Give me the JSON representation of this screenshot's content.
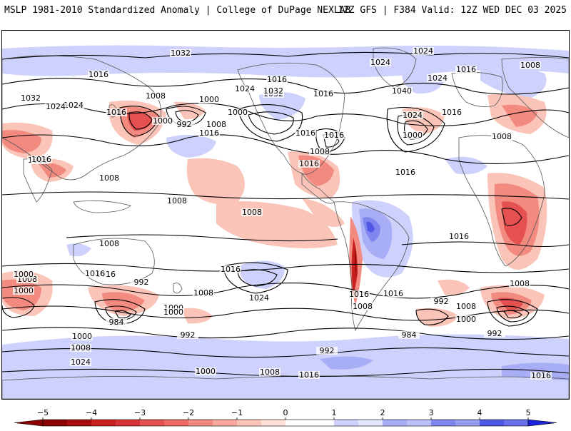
{
  "header": {
    "left_title": "MSLP 1981-2010 Standardized Anomaly | College of DuPage NEXLAB",
    "right_title": "12Z GFS | F384 Valid: 12Z WED DEC 03 2025"
  },
  "colors": {
    "land_outline": "#555555",
    "isobar": "#000000",
    "neg5": "#8b0000",
    "neg4": "#c82020",
    "neg3": "#e55050",
    "neg2": "#f38a80",
    "neg1": "#fbc4b8",
    "pos1": "#cdd1fb",
    "pos2": "#a8aef5",
    "pos3": "#7f86ee",
    "pos4": "#4f58e4",
    "pos5": "#1a23d8"
  },
  "colorbar": {
    "ticks": [
      "−5",
      "−4",
      "−3",
      "−2",
      "−1",
      "0",
      "1",
      "2",
      "3",
      "4",
      "5"
    ]
  },
  "isobar_labels": [
    "1032",
    "1024",
    "1024",
    "1008",
    "1016",
    "1016",
    "1024",
    "1024",
    "1032",
    "1016",
    "1032",
    "1032",
    "1040",
    "1024",
    "1016",
    "1008",
    "1000",
    "1000",
    "992",
    "1016",
    "1016",
    "1008",
    "1000",
    "1016",
    "1024",
    "1016",
    "1024",
    "1008",
    "1016",
    "1008",
    "1000",
    "1016",
    "1008",
    "1008",
    "1008",
    "1016",
    "1008",
    "1016",
    "1016",
    "1016",
    "1008",
    "1016",
    "1016",
    "1008",
    "1000",
    "1024",
    "1016",
    "1008",
    "1016",
    "1000",
    "984",
    "992",
    "1000",
    "992",
    "1000",
    "984",
    "992",
    "1000",
    "992",
    "1008",
    "1008",
    "1000",
    "992",
    "1008",
    "1024",
    "1000",
    "1008",
    "1016",
    "1016",
    "1008"
  ]
}
